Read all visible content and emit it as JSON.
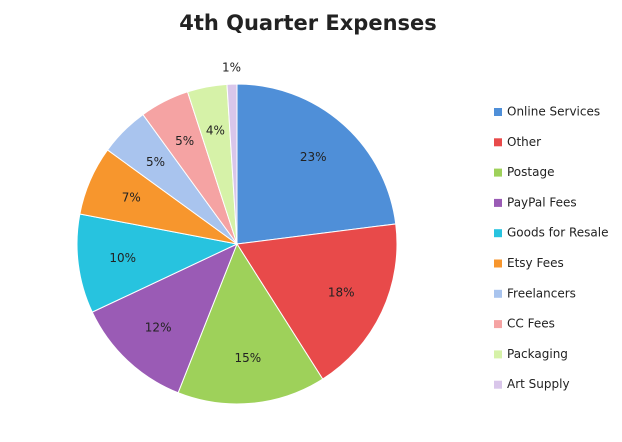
{
  "chart_data": {
    "type": "pie",
    "title": "4th Quarter Expenses",
    "categories": [
      "Online Services",
      "Other",
      "Postage",
      "PayPal Fees",
      "Goods for Resale",
      "Etsy Fees",
      "Freelancers",
      "CC Fees",
      "Packaging",
      "Art Supply"
    ],
    "values": [
      23,
      18,
      15,
      12,
      10,
      7,
      5,
      5,
      4,
      1
    ],
    "value_labels": [
      "23%",
      "18%",
      "15%",
      "12%",
      "10%",
      "7%",
      "5%",
      "5%",
      "4%",
      "1%"
    ],
    "colors": [
      "#4f8fd8",
      "#e84a4a",
      "#9ed15a",
      "#9a5bb5",
      "#27c3df",
      "#f7962d",
      "#a9c4ee",
      "#f5a3a3",
      "#d6f2a8",
      "#d9c6ea"
    ],
    "legend": "right"
  }
}
